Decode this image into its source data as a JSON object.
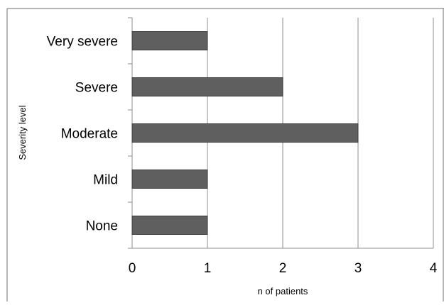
{
  "chart_data": {
    "type": "bar",
    "orientation": "horizontal",
    "categories": [
      "Very severe",
      "Severe",
      "Moderate",
      "Mild",
      "None"
    ],
    "series": [
      {
        "values": [
          1,
          2,
          3,
          1,
          1
        ]
      }
    ],
    "xlabel": "n of patients",
    "ylabel": "Severity level",
    "xlim": [
      0,
      4
    ],
    "xticks": [
      "0",
      "1",
      "2",
      "3",
      "4"
    ],
    "grid": "vertical",
    "legend": "none",
    "bar_color": "#5f5f5f",
    "bar_border": "#3a3a3a",
    "grid_color": "#8c8c8c",
    "frame_color": "#6d6d6d"
  }
}
